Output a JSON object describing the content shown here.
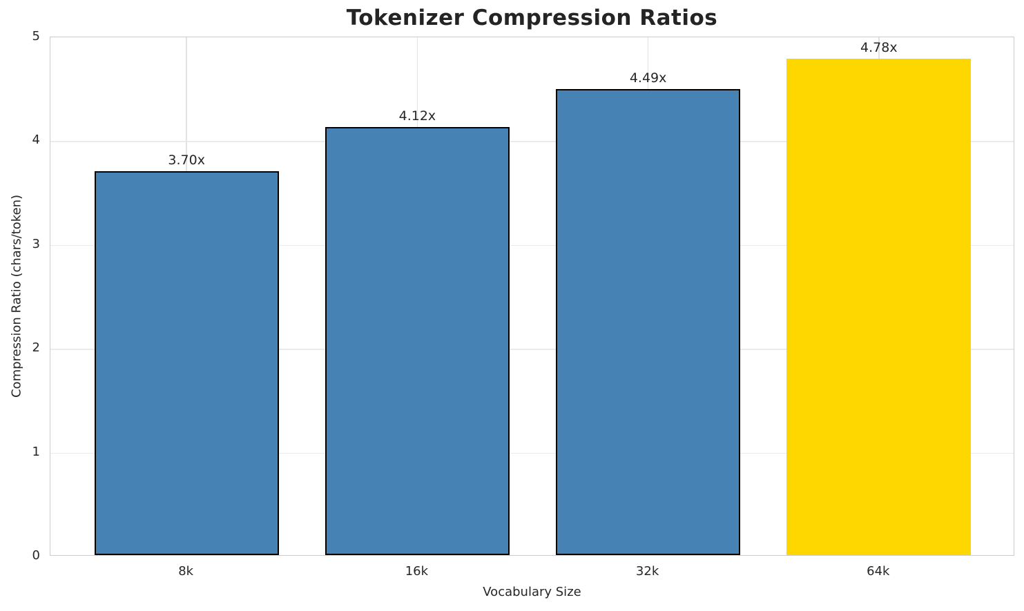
{
  "chart_data": {
    "type": "bar",
    "title": "Tokenizer Compression Ratios",
    "xlabel": "Vocabulary Size",
    "ylabel": "Compression Ratio (chars/token)",
    "categories": [
      "8k",
      "16k",
      "32k",
      "64k"
    ],
    "values": [
      3.7,
      4.12,
      4.49,
      4.78
    ],
    "bar_value_labels": [
      "3.70x",
      "4.12x",
      "4.49x",
      "4.78x"
    ],
    "ylim": [
      0,
      5
    ],
    "ytick_labels": [
      "0",
      "1",
      "2",
      "3",
      "4",
      "5"
    ],
    "grid": "on",
    "legend": "none",
    "colors": {
      "base_bar": "#4682B4",
      "highlight_bar": "#FFD700",
      "bar_edge": "#000000",
      "grid": "#ebebeb",
      "spine": "#cbcbcb",
      "text": "#262626"
    },
    "bar_colors": [
      "#4682B4",
      "#4682B4",
      "#4682B4",
      "#FFD700"
    ],
    "bar_has_edge": [
      true,
      true,
      true,
      false
    ],
    "highlighted_category": "64k"
  }
}
